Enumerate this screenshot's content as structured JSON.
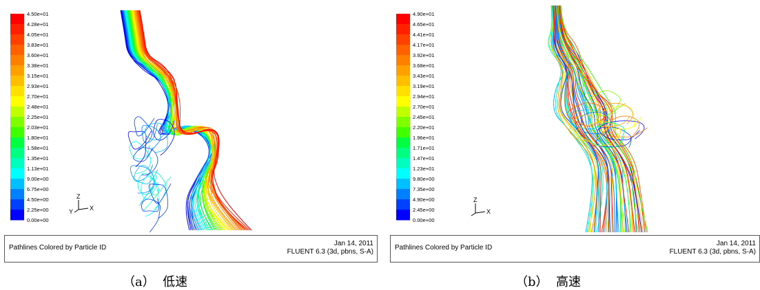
{
  "panels": [
    {
      "caption": "（a）  低速",
      "legend_values": [
        "4.50e+01",
        "4.28e+01",
        "4.05e+01",
        "3.83e+01",
        "3.60e+01",
        "3.38e+01",
        "3.15e+01",
        "2.93e+01",
        "2.70e+01",
        "2.48e+01",
        "2.25e+01",
        "2.03e+01",
        "1.80e+01",
        "1.58e+01",
        "1.35e+01",
        "1.13e+01",
        "9.00e+00",
        "6.75e+00",
        "4.50e+00",
        "2.25e+00",
        "0.00e+00"
      ],
      "info_title": "Pathlines Colored by Particle ID",
      "date": "Jan 14, 2011",
      "solver": "FLUENT 6.3 (3d, pbns, S-A)",
      "axes": {
        "z": "Z",
        "x": "X",
        "y": "Y"
      }
    },
    {
      "caption": "（b）  高速",
      "legend_values": [
        "4.90e+01",
        "4.65e+01",
        "4.41e+01",
        "4.17e+01",
        "3.92e+01",
        "3.68e+01",
        "3.43e+01",
        "3.19e+01",
        "2.94e+01",
        "2.70e+01",
        "2.45e+01",
        "2.20e+01",
        "1.96e+01",
        "1.71e+01",
        "1.47e+01",
        "1.23e+01",
        "9.80e+00",
        "7.35e+00",
        "4.90e+00",
        "2.45e+00",
        "0.00e+00"
      ],
      "info_title": "Pathlines Colored by Particle ID",
      "date": "Jan 14, 2011",
      "solver": "FLUENT 6.3 (3d, pbns, S-A)",
      "axes": {
        "z": "Z",
        "x": "X",
        "y": ""
      }
    }
  ],
  "colormap": [
    "#0000ff",
    "#0040ff",
    "#0080ff",
    "#00bfff",
    "#00ffff",
    "#00ffbf",
    "#00ff80",
    "#00ff40",
    "#40ff00",
    "#80ff00",
    "#bfff00",
    "#ffff00",
    "#ffe000",
    "#ffbf00",
    "#ff9f00",
    "#ff8000",
    "#ff6000",
    "#ff4000",
    "#ff2000",
    "#ff0000"
  ]
}
